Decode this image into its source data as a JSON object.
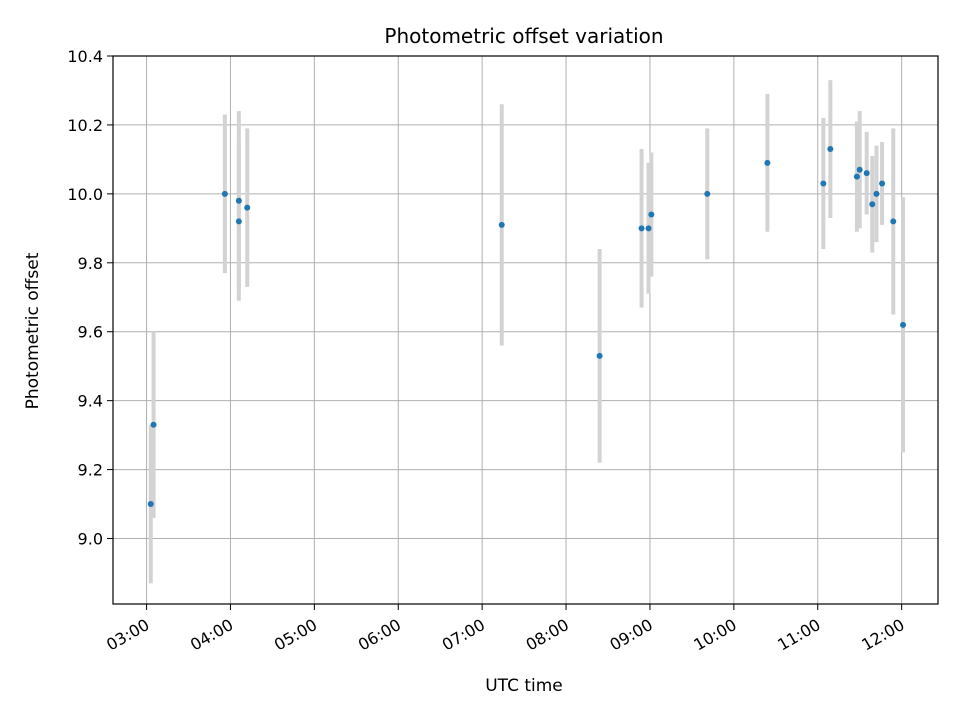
{
  "chart_data": {
    "type": "scatter",
    "title": "Photometric offset variation",
    "xlabel": "UTC time",
    "ylabel": "Photometric offset",
    "xlim": [
      "02:36",
      "12:26"
    ],
    "ylim": [
      8.81,
      10.4
    ],
    "x_ticks": [
      "03:00",
      "04:00",
      "05:00",
      "06:00",
      "07:00",
      "08:00",
      "09:00",
      "10:00",
      "11:00",
      "12:00"
    ],
    "y_ticks": [
      9.0,
      9.2,
      9.4,
      9.6,
      9.8,
      10.0,
      10.2,
      10.4
    ],
    "grid": true,
    "colors": {
      "point": "#1f77b4",
      "errorbar": "#d3d3d3",
      "grid": "#b0b0b0"
    },
    "points": [
      {
        "x": "03:03",
        "y": 9.1,
        "err": 0.23
      },
      {
        "x": "03:05",
        "y": 9.33,
        "err": 0.27
      },
      {
        "x": "03:56",
        "y": 10.0,
        "err": 0.23
      },
      {
        "x": "04:06",
        "y": 9.92,
        "err": 0.23
      },
      {
        "x": "04:06",
        "y": 9.98,
        "err": 0.26
      },
      {
        "x": "04:12",
        "y": 9.96,
        "err": 0.23
      },
      {
        "x": "07:14",
        "y": 9.91,
        "err": 0.35
      },
      {
        "x": "08:24",
        "y": 9.53,
        "err": 0.31
      },
      {
        "x": "08:54",
        "y": 9.9,
        "err": 0.23
      },
      {
        "x": "08:59",
        "y": 9.9,
        "err": 0.19
      },
      {
        "x": "09:01",
        "y": 9.94,
        "err": 0.18
      },
      {
        "x": "09:41",
        "y": 10.0,
        "err": 0.19
      },
      {
        "x": "10:24",
        "y": 10.09,
        "err": 0.2
      },
      {
        "x": "11:04",
        "y": 10.03,
        "err": 0.19
      },
      {
        "x": "11:09",
        "y": 10.13,
        "err": 0.2
      },
      {
        "x": "11:28",
        "y": 10.05,
        "err": 0.16
      },
      {
        "x": "11:30",
        "y": 10.07,
        "err": 0.17
      },
      {
        "x": "11:35",
        "y": 10.06,
        "err": 0.12
      },
      {
        "x": "11:39",
        "y": 9.97,
        "err": 0.14
      },
      {
        "x": "11:42",
        "y": 10.0,
        "err": 0.14
      },
      {
        "x": "11:46",
        "y": 10.03,
        "err": 0.12
      },
      {
        "x": "11:54",
        "y": 9.92,
        "err": 0.27
      },
      {
        "x": "12:01",
        "y": 9.62,
        "err": 0.37
      }
    ]
  }
}
